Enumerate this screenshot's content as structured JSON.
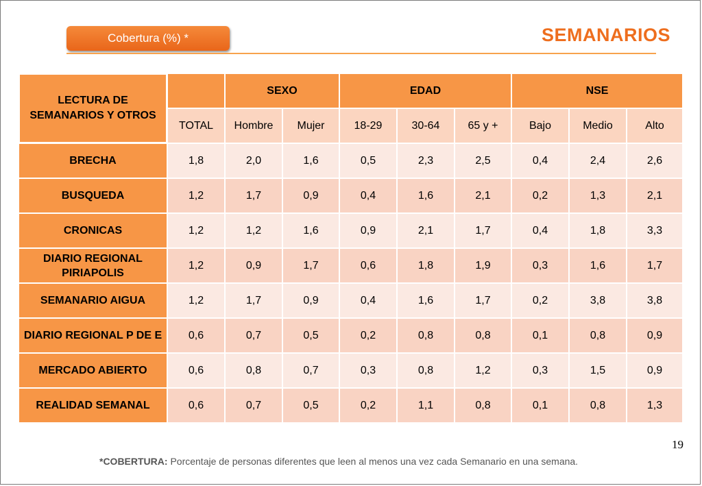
{
  "header": {
    "badge": "Cobertura (%) *",
    "title": "SEMANARIOS"
  },
  "table": {
    "corner_label": "LECTURA DE SEMANARIOS Y OTROS",
    "groups": [
      "SEXO",
      "EDAD",
      "NSE"
    ],
    "columns": [
      "TOTAL",
      "Hombre",
      "Mujer",
      "18-29",
      "30-64",
      "65 y +",
      "Bajo",
      "Medio",
      "Alto"
    ],
    "rows": [
      {
        "label": "BRECHA",
        "values": [
          "1,8",
          "2,0",
          "1,6",
          "0,5",
          "2,3",
          "2,5",
          "0,4",
          "2,4",
          "2,6"
        ]
      },
      {
        "label": "BUSQUEDA",
        "values": [
          "1,2",
          "1,7",
          "0,9",
          "0,4",
          "1,6",
          "2,1",
          "0,2",
          "1,3",
          "2,1"
        ]
      },
      {
        "label": "CRONICAS",
        "values": [
          "1,2",
          "1,2",
          "1,6",
          "0,9",
          "2,1",
          "1,7",
          "0,4",
          "1,8",
          "3,3"
        ]
      },
      {
        "label": "DIARIO REGIONAL PIRIAPOLIS",
        "values": [
          "1,2",
          "0,9",
          "1,7",
          "0,6",
          "1,8",
          "1,9",
          "0,3",
          "1,6",
          "1,7"
        ]
      },
      {
        "label": "SEMANARIO AIGUA",
        "values": [
          "1,2",
          "1,7",
          "0,9",
          "0,4",
          "1,6",
          "1,7",
          "0,2",
          "3,8",
          "3,8"
        ]
      },
      {
        "label": "DIARIO REGIONAL P DE E",
        "values": [
          "0,6",
          "0,7",
          "0,5",
          "0,2",
          "0,8",
          "0,8",
          "0,1",
          "0,8",
          "0,9"
        ]
      },
      {
        "label": "MERCADO ABIERTO",
        "values": [
          "0,6",
          "0,8",
          "0,7",
          "0,3",
          "0,8",
          "1,2",
          "0,3",
          "1,5",
          "0,9"
        ]
      },
      {
        "label": "REALIDAD SEMANAL",
        "values": [
          "0,6",
          "0,7",
          "0,5",
          "0,2",
          "1,1",
          "0,8",
          "0,1",
          "0,8",
          "1,3"
        ]
      }
    ]
  },
  "page_number": "19",
  "footnote": {
    "term": "*COBERTURA:",
    "text": " Porcentaje de personas diferentes que leen al menos una vez cada Semanario en una semana."
  },
  "colors": {
    "accent": "#f79646",
    "title": "#ee6e1e",
    "row_light": "#fbe9e2",
    "row_dark": "#f9d3c3"
  }
}
